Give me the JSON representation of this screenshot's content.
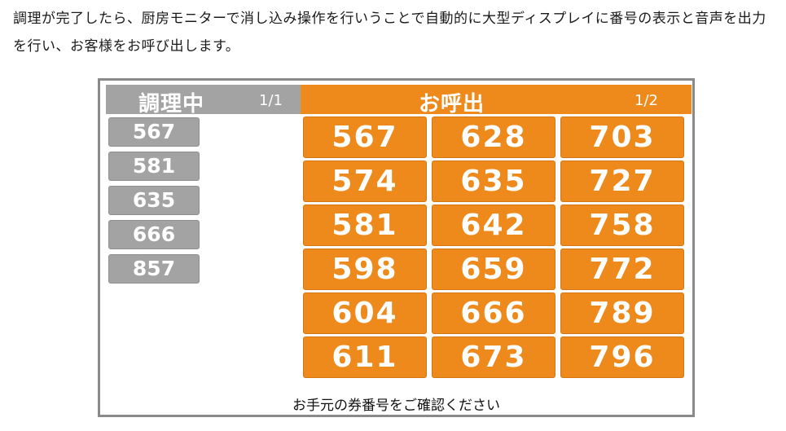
{
  "intro_text": "調理が完了したら、厨房モニターで消し込み操作を行いうことで自動的に大型ディスプレイに番号の表示と音声を出力を行い、お客様をお呼び出します。",
  "cooking": {
    "title": "調理中",
    "page": "1/1",
    "numbers": [
      "567",
      "581",
      "635",
      "666",
      "857"
    ]
  },
  "calling": {
    "title": "お呼出",
    "page": "1/2",
    "numbers": [
      "567",
      "628",
      "703",
      "574",
      "635",
      "727",
      "581",
      "642",
      "758",
      "598",
      "659",
      "772",
      "604",
      "666",
      "789",
      "611",
      "673",
      "796"
    ]
  },
  "footer": "お手元の券番号をご確認ください",
  "colors": {
    "cooking_gray": "#a3a3a3",
    "calling_orange": "#ee8a1c",
    "frame_gray": "#8a8a8a"
  }
}
